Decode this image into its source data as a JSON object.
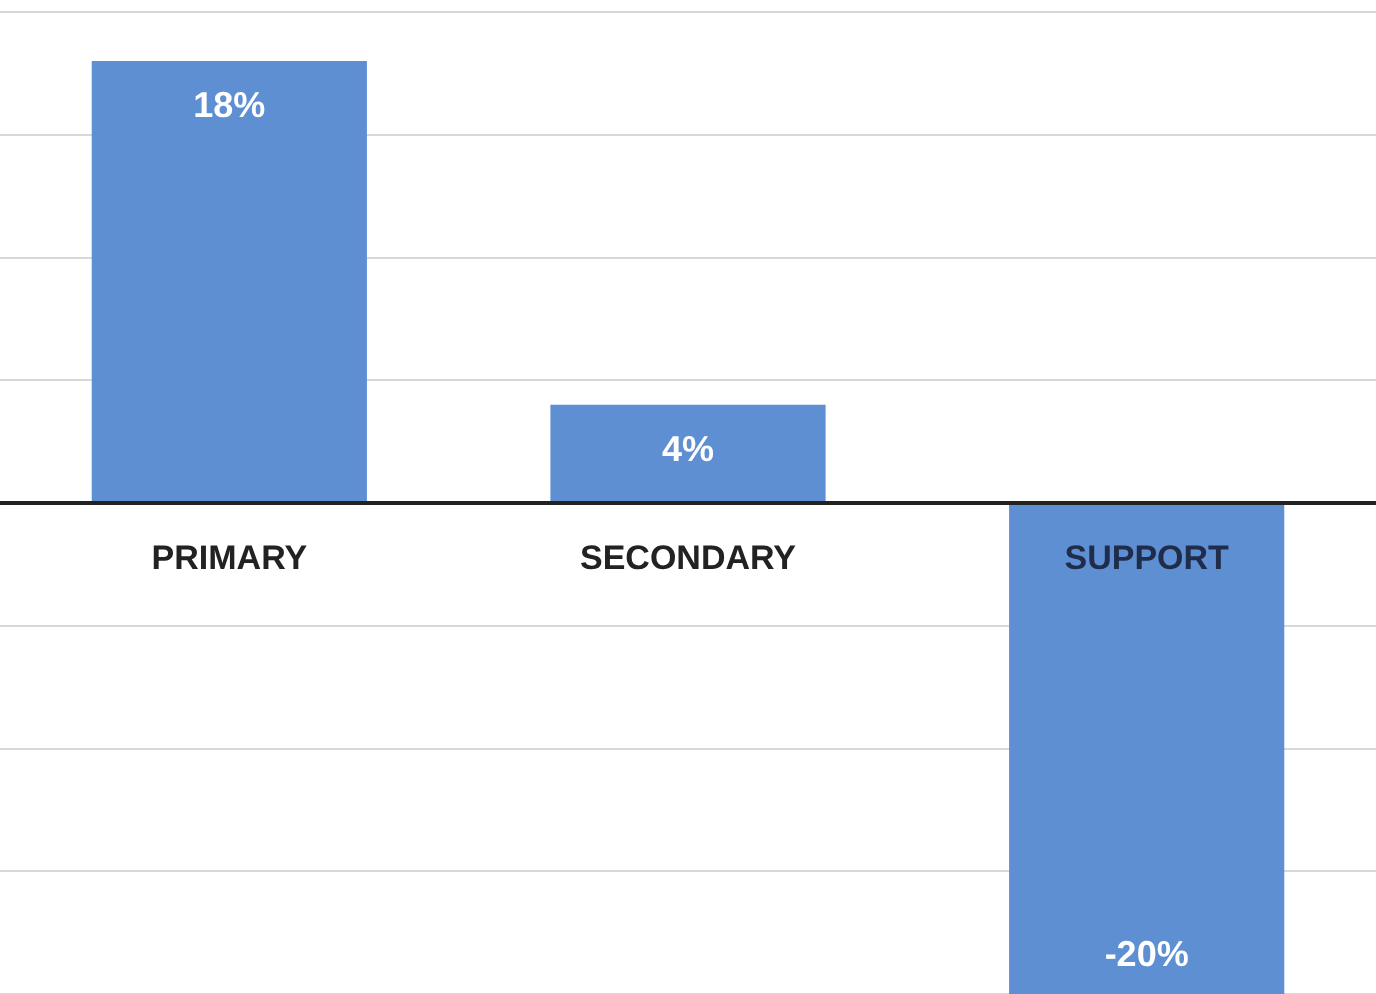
{
  "chart_data": {
    "type": "bar",
    "categories": [
      "PRIMARY",
      "SECONDARY",
      "SUPPORT"
    ],
    "values": [
      18,
      4,
      -20
    ],
    "color": "#5f8fd3",
    "value_labels": [
      "18%",
      "4%",
      "-20%"
    ],
    "grid": "y",
    "tick_labels": "x",
    "legend": false
  }
}
